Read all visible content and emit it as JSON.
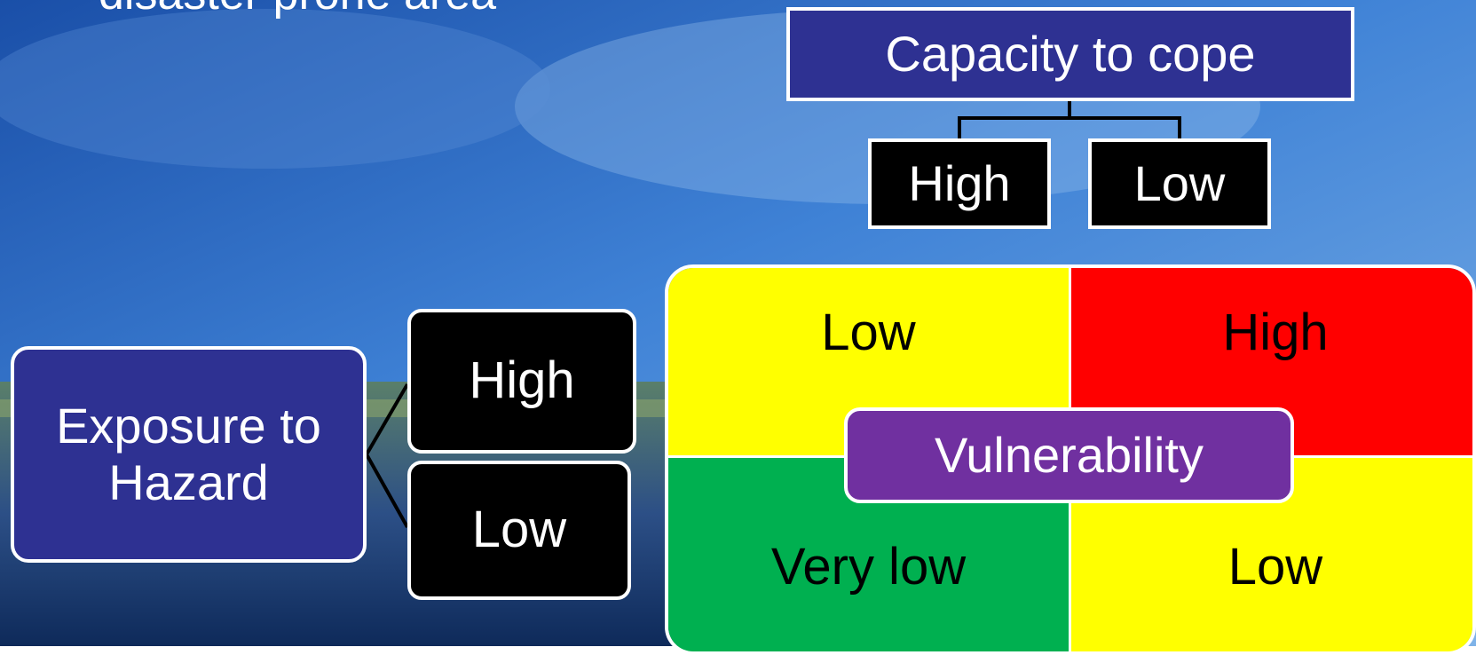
{
  "heading": "disaster prone area",
  "capacity": {
    "title": "Capacity to cope",
    "high": "High",
    "low": "Low"
  },
  "exposure": {
    "title": "Exposure to Hazard",
    "high": "High",
    "low": "Low"
  },
  "matrix": {
    "top_left": "Low",
    "top_right": "High",
    "bottom_left": "Very low",
    "bottom_right": "Low",
    "center": "Vulnerability"
  }
}
